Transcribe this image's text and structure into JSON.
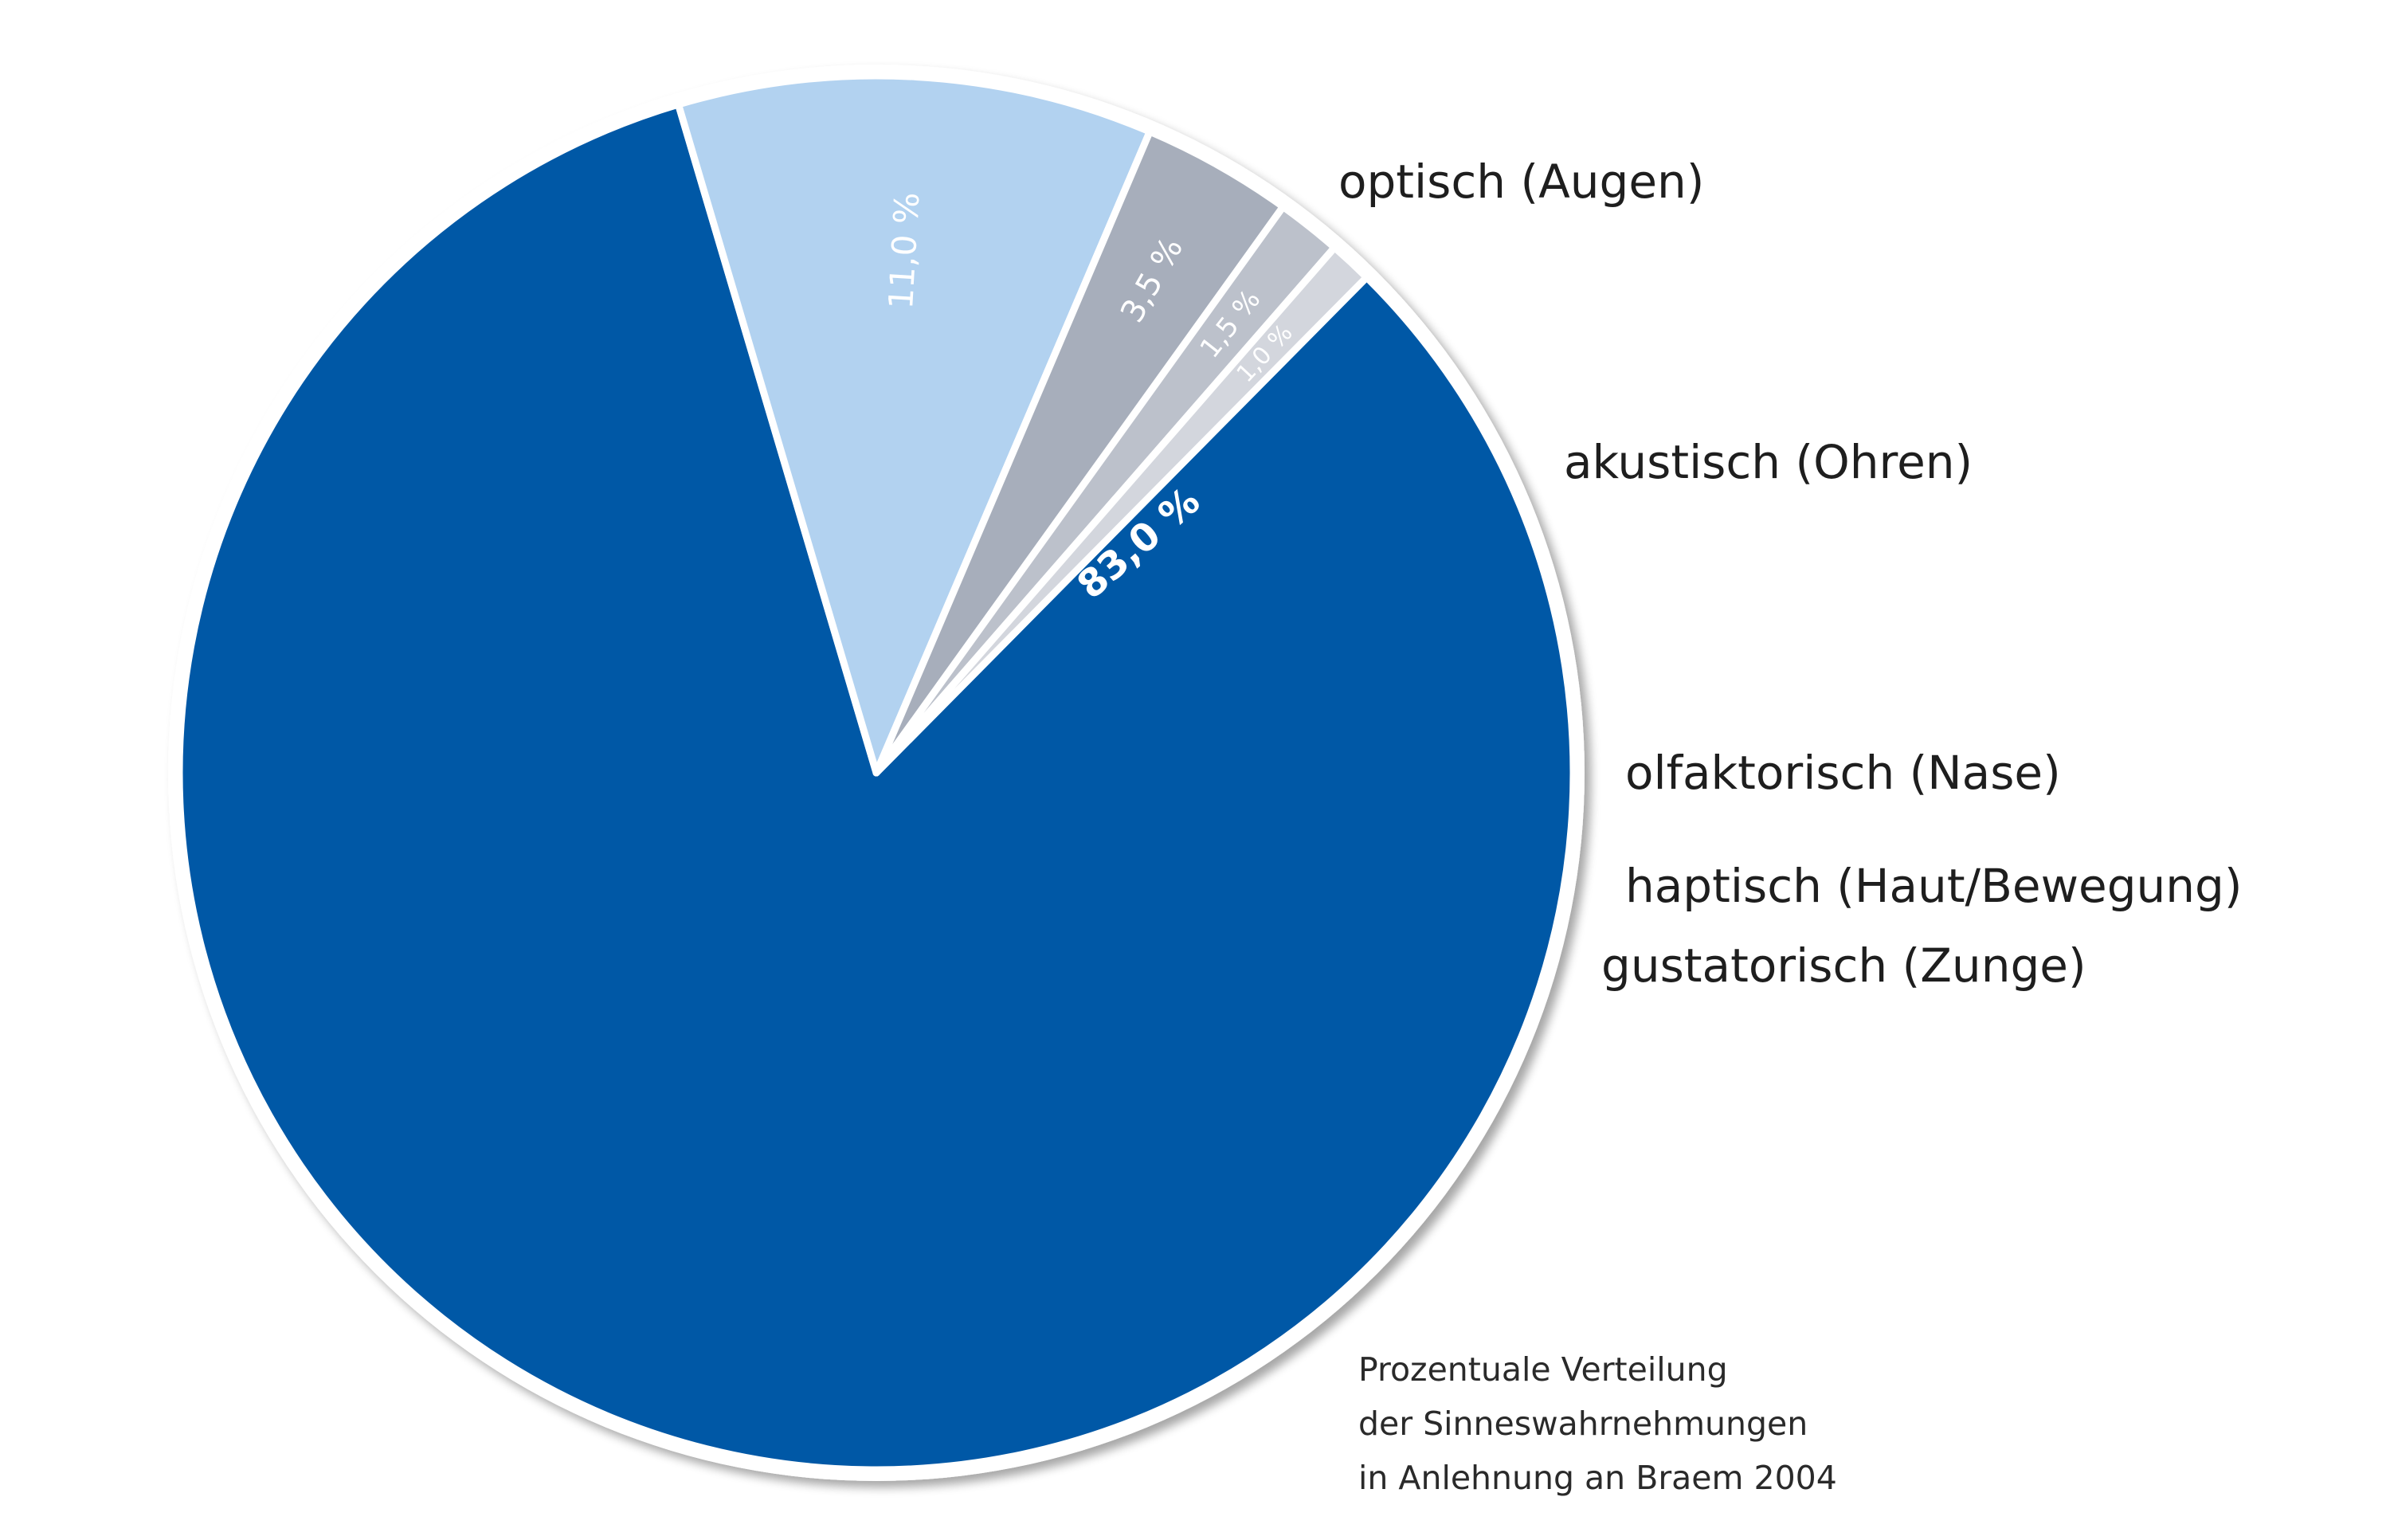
{
  "chart_data": {
    "type": "pie",
    "unit": "%",
    "slices": [
      {
        "label": "optisch (Augen)",
        "value": 83.0,
        "value_label": "83,0 %",
        "color": "#0058a6"
      },
      {
        "label": "akustisch (Ohren)",
        "value": 11.0,
        "value_label": "11,0 %",
        "color": "#b2d2f0"
      },
      {
        "label": "olfaktorisch (Nase)",
        "value": 3.5,
        "value_label": "3,5 %",
        "color": "#a7aebb"
      },
      {
        "label": "haptisch (Haut/Bewegung)",
        "value": 1.5,
        "value_label": "1,5 %",
        "color": "#bcc1cb"
      },
      {
        "label": "gustatorisch (Zunge)",
        "value": 1.0,
        "value_label": "1,0 %",
        "color": "#d3d6dd"
      }
    ],
    "caption": [
      "Prozentuale Verteilung",
      "der Sinneswahrnehmungen",
      "in Anlehnung an Braem 2004"
    ]
  }
}
